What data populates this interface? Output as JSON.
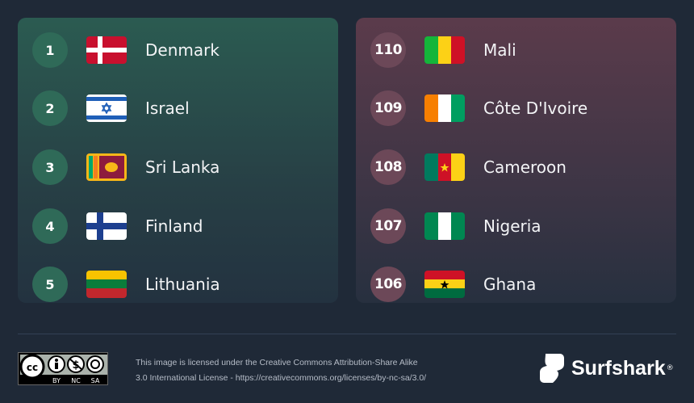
{
  "top_ranked": [
    {
      "rank": "1",
      "country": "Denmark",
      "flag": "denmark-flag"
    },
    {
      "rank": "2",
      "country": "Israel",
      "flag": "israel-flag"
    },
    {
      "rank": "3",
      "country": "Sri Lanka",
      "flag": "sri-lanka-flag"
    },
    {
      "rank": "4",
      "country": "Finland",
      "flag": "finland-flag"
    },
    {
      "rank": "5",
      "country": "Lithuania",
      "flag": "lithuania-flag"
    }
  ],
  "bottom_ranked": [
    {
      "rank": "110",
      "country": "Mali",
      "flag": "mali-flag"
    },
    {
      "rank": "109",
      "country": "Côte D'Ivoire",
      "flag": "cote-divoire-flag"
    },
    {
      "rank": "108",
      "country": "Cameroon",
      "flag": "cameroon-flag"
    },
    {
      "rank": "107",
      "country": "Nigeria",
      "flag": "nigeria-flag"
    },
    {
      "rank": "106",
      "country": "Ghana",
      "flag": "ghana-flag"
    }
  ],
  "footer": {
    "cc_badge": [
      "BY",
      "NC",
      "SA"
    ],
    "license_line1": "This image is licensed under the Creative Commons Attribution-Share Alike",
    "license_line2": "3.0 International License - https://creativecommons.org/licenses/by-nc-sa/3.0/",
    "brand": "Surfshark",
    "brand_mark": "®"
  },
  "colors": {
    "background": "#1f2937",
    "left_panel": "#2b5b51",
    "right_panel": "#5b3b4b"
  }
}
